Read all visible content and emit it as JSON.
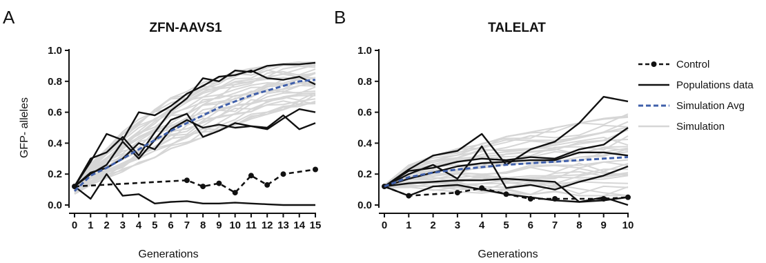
{
  "chart_data": [
    {
      "type": "line",
      "panel": "A",
      "title": "ZFN-AAVS1",
      "xlabel": "Generations",
      "ylabel": "GFP- alleles",
      "xlim": [
        0,
        15
      ],
      "ylim": [
        0,
        1.0
      ],
      "xticks": [
        "0",
        "1",
        "2",
        "3",
        "4",
        "5",
        "6",
        "7",
        "8",
        "9",
        "10",
        "11",
        "12",
        "13",
        "14",
        "15"
      ],
      "yticks": [
        "0.0",
        "0.2",
        "0.4",
        "0.6",
        "0.8",
        "1.0"
      ],
      "grid": false,
      "series": [
        {
          "name": "Control",
          "style": "dashed-markers",
          "color": "#111111",
          "x": [
            0,
            7,
            8,
            9,
            10,
            11,
            12,
            13,
            15
          ],
          "y": [
            0.12,
            0.16,
            0.12,
            0.14,
            0.08,
            0.19,
            0.13,
            0.2,
            0.23
          ]
        },
        {
          "name": "Populations data",
          "style": "solid",
          "color": "#111111",
          "lines": [
            {
              "x": [
                0,
                1,
                2,
                3,
                4,
                5,
                6,
                7,
                8,
                9,
                10,
                11,
                12,
                13,
                14,
                15
              ],
              "y": [
                0.12,
                0.3,
                0.34,
                0.44,
                0.32,
                0.47,
                0.61,
                0.69,
                0.82,
                0.8,
                0.87,
                0.86,
                0.9,
                0.91,
                0.91,
                0.92
              ]
            },
            {
              "x": [
                0,
                1,
                2,
                3,
                4,
                5,
                6,
                7,
                8,
                9,
                10,
                11,
                12,
                13,
                14,
                15
              ],
              "y": [
                0.12,
                0.28,
                0.46,
                0.42,
                0.6,
                0.58,
                0.64,
                0.72,
                0.77,
                0.83,
                0.84,
                0.87,
                0.82,
                0.81,
                0.83,
                0.78
              ]
            },
            {
              "x": [
                0,
                1,
                2,
                3,
                4,
                5,
                6,
                7,
                8,
                9,
                10,
                11,
                12,
                13,
                14,
                15
              ],
              "y": [
                0.12,
                0.21,
                0.24,
                0.3,
                0.4,
                0.36,
                0.49,
                0.55,
                0.5,
                0.52,
                0.5,
                0.51,
                0.49,
                0.56,
                0.62,
                0.6
              ]
            },
            {
              "x": [
                0,
                1,
                2,
                3,
                4,
                5,
                6,
                7,
                8,
                9,
                10,
                11,
                12,
                13,
                14,
                15
              ],
              "y": [
                0.12,
                0.2,
                0.26,
                0.41,
                0.3,
                0.42,
                0.55,
                0.59,
                0.44,
                0.48,
                0.53,
                0.51,
                0.5,
                0.58,
                0.49,
                0.53
              ]
            },
            {
              "x": [
                0,
                1,
                2,
                3,
                4,
                5,
                6,
                7,
                8,
                9,
                10,
                11,
                12,
                13,
                14,
                15
              ],
              "y": [
                0.12,
                0.04,
                0.2,
                0.06,
                0.07,
                0.01,
                0.02,
                0.025,
                0.01,
                0.01,
                0.015,
                0.01,
                0.005,
                0.0,
                0.0,
                0.0
              ]
            }
          ]
        },
        {
          "name": "Simulation Avg",
          "style": "dashed",
          "color": "#3f5faa",
          "x": [
            0,
            1,
            2,
            3,
            4,
            5,
            6,
            7,
            8,
            9,
            10,
            11,
            12,
            13,
            14,
            15
          ],
          "y": [
            0.09,
            0.19,
            0.24,
            0.3,
            0.36,
            0.42,
            0.48,
            0.53,
            0.58,
            0.63,
            0.67,
            0.71,
            0.74,
            0.77,
            0.8,
            0.81
          ]
        },
        {
          "name": "Simulation",
          "style": "solid",
          "color": "#d6d6d6",
          "x": [
            0,
            1,
            2,
            3,
            4,
            5,
            6,
            7,
            8,
            9,
            10,
            11,
            12,
            13,
            14,
            15
          ],
          "range_low": [
            0.07,
            0.12,
            0.17,
            0.21,
            0.26,
            0.3,
            0.35,
            0.39,
            0.43,
            0.47,
            0.51,
            0.55,
            0.58,
            0.61,
            0.63,
            0.65
          ],
          "range_high": [
            0.13,
            0.27,
            0.38,
            0.48,
            0.56,
            0.63,
            0.7,
            0.75,
            0.8,
            0.84,
            0.87,
            0.89,
            0.91,
            0.92,
            0.93,
            0.93
          ]
        }
      ]
    },
    {
      "type": "line",
      "panel": "B",
      "title": "TALELAT",
      "xlabel": "Generations",
      "ylabel": "",
      "xlim": [
        0,
        10
      ],
      "ylim": [
        0,
        1.0
      ],
      "xticks": [
        "0",
        "1",
        "2",
        "3",
        "4",
        "5",
        "6",
        "7",
        "8",
        "9",
        "10"
      ],
      "yticks": [
        "0.0",
        "0.2",
        "0.4",
        "0.6",
        "0.8",
        "1.0"
      ],
      "grid": false,
      "series": [
        {
          "name": "Control",
          "style": "dashed-markers",
          "color": "#111111",
          "x": [
            0,
            1,
            3,
            4,
            5,
            6,
            7,
            9,
            10
          ],
          "y": [
            0.12,
            0.06,
            0.08,
            0.11,
            0.07,
            0.04,
            0.04,
            0.04,
            0.05
          ]
        },
        {
          "name": "Populations data",
          "style": "solid",
          "color": "#111111",
          "lines": [
            {
              "x": [
                0,
                1,
                2,
                3,
                4,
                5,
                6,
                7,
                8,
                9,
                10
              ],
              "y": [
                0.12,
                0.23,
                0.32,
                0.35,
                0.46,
                0.26,
                0.36,
                0.41,
                0.53,
                0.7,
                0.67
              ]
            },
            {
              "x": [
                0,
                1,
                2,
                3,
                4,
                5,
                6,
                7,
                8,
                9,
                10
              ],
              "y": [
                0.12,
                0.22,
                0.24,
                0.28,
                0.3,
                0.29,
                0.31,
                0.3,
                0.36,
                0.39,
                0.5
              ]
            },
            {
              "x": [
                0,
                1,
                2,
                3,
                4,
                5,
                6,
                7,
                8,
                9,
                10
              ],
              "y": [
                0.12,
                0.2,
                0.26,
                0.17,
                0.38,
                0.11,
                0.13,
                0.1,
                0.15,
                0.19,
                0.25
              ]
            },
            {
              "x": [
                0,
                1,
                2,
                3,
                4,
                5,
                6,
                7,
                8,
                9,
                10
              ],
              "y": [
                0.12,
                0.17,
                0.21,
                0.25,
                0.27,
                0.28,
                0.29,
                0.29,
                0.34,
                0.34,
                0.32
              ]
            },
            {
              "x": [
                0,
                1,
                2,
                3,
                4,
                5,
                6,
                7,
                8,
                9,
                10
              ],
              "y": [
                0.12,
                0.06,
                0.12,
                0.13,
                0.1,
                0.07,
                0.05,
                0.03,
                0.02,
                0.05,
                0.0
              ]
            },
            {
              "x": [
                0,
                1,
                2,
                3,
                4,
                5,
                6,
                7,
                8,
                9,
                10
              ],
              "y": [
                0.12,
                0.14,
                0.15,
                0.16,
                0.16,
                0.17,
                0.16,
                0.15,
                0.02,
                0.03,
                0.05
              ]
            }
          ]
        },
        {
          "name": "Simulation Avg",
          "style": "dashed",
          "color": "#3f5faa",
          "x": [
            0,
            1,
            2,
            3,
            4,
            5,
            6,
            7,
            8,
            9,
            10
          ],
          "y": [
            0.12,
            0.18,
            0.21,
            0.23,
            0.245,
            0.26,
            0.27,
            0.28,
            0.29,
            0.3,
            0.31
          ]
        },
        {
          "name": "Simulation",
          "style": "solid",
          "color": "#d6d6d6",
          "x": [
            0,
            1,
            2,
            3,
            4,
            5,
            6,
            7,
            8,
            9,
            10
          ],
          "range_low": [
            0.11,
            0.1,
            0.09,
            0.08,
            0.07,
            0.07,
            0.06,
            0.06,
            0.05,
            0.05,
            0.05
          ],
          "range_high": [
            0.13,
            0.27,
            0.33,
            0.37,
            0.41,
            0.45,
            0.48,
            0.51,
            0.54,
            0.57,
            0.6
          ]
        }
      ]
    }
  ],
  "legend": {
    "placement": "right",
    "entries": [
      {
        "label": "Control",
        "style": "dashed-markers",
        "color": "#111111"
      },
      {
        "label": "Populations data",
        "style": "solid",
        "color": "#111111"
      },
      {
        "label": "Simulation Avg",
        "style": "dashed",
        "color": "#3f5faa"
      },
      {
        "label": "Simulation",
        "style": "solid",
        "color": "#d6d6d6"
      }
    ]
  }
}
